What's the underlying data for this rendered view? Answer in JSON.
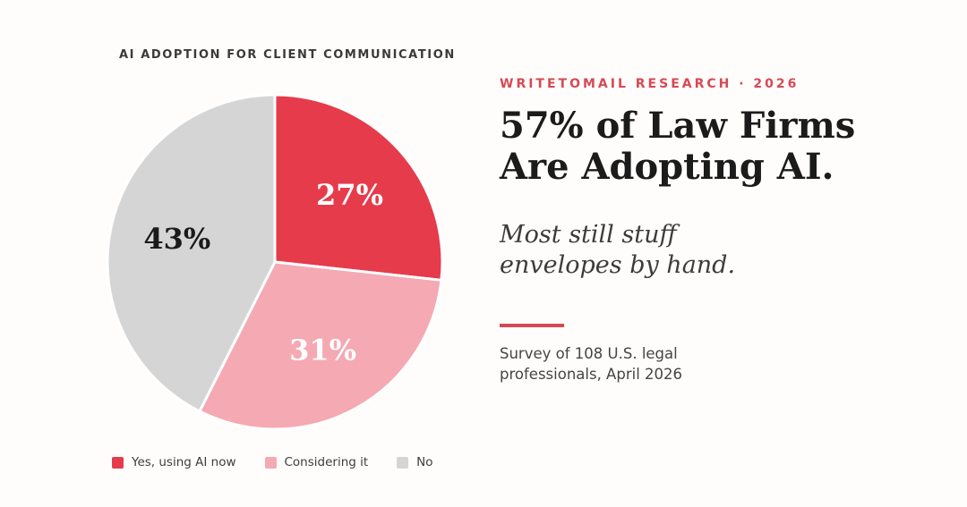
{
  "background_color": "#fffdfb",
  "chart": {
    "title": "AI ADOPTION FOR CLIENT COMMUNICATION"
  },
  "chart_data": {
    "type": "pie",
    "title": "AI ADOPTION FOR CLIENT COMMUNICATION",
    "labels": [
      "Yes, using AI now",
      "Considering it",
      "No"
    ],
    "values": [
      27,
      31,
      43
    ],
    "value_labels": [
      "27%",
      "31%",
      "43%"
    ],
    "slice_colors": [
      "#e63b4b",
      "#f5a9b3",
      "#d5d5d5"
    ],
    "value_label_colors": [
      "#ffffff",
      "#ffffff",
      "#1a1a1a"
    ],
    "start_angle_deg": 90,
    "direction": "clockwise",
    "legend_position": "bottom",
    "wedge_border_color": "#ffffff",
    "label_radius_fraction": 0.6
  },
  "panel": {
    "eyebrow": "WRITETOMAIL RESEARCH · 2026",
    "headline": "57% of Law Firms\nAre Adopting AI.",
    "subhead": "Most still stuff\nenvelopes by hand.",
    "caption": "Survey of 108 U.S. legal\nprofessionals, April 2026",
    "accent_color": "#d64954"
  }
}
